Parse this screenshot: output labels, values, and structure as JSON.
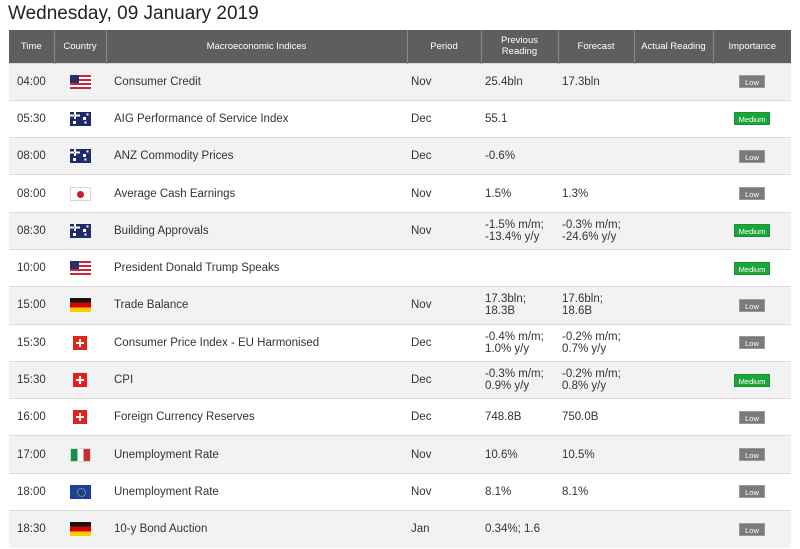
{
  "page": {
    "title": "Wednesday, 09 January 2019"
  },
  "columns": {
    "time": "Time",
    "country": "Country",
    "indicator": "Macroeconomic Indices",
    "period": "Period",
    "previous": "Previous Reading",
    "forecast": "Forecast",
    "actual": "Actual Reading",
    "importance": "Importance"
  },
  "rows": [
    {
      "time": "04:00",
      "flag": "us-flag-icon",
      "indicator": "Consumer Credit",
      "period": "Nov",
      "previous_1": "25.4bln",
      "previous_2": "",
      "forecast_1": "17.3bln",
      "forecast_2": "",
      "actual": "",
      "importance": "Low"
    },
    {
      "time": "05:30",
      "flag": "australia-flag-icon",
      "indicator": "AIG Performance of Service Index",
      "period": "Dec",
      "previous_1": "55.1",
      "previous_2": "",
      "forecast_1": "",
      "forecast_2": "",
      "actual": "",
      "importance": "Medium"
    },
    {
      "time": "08:00",
      "flag": "australia-flag-icon",
      "indicator": "ANZ Commodity Prices",
      "period": "Dec",
      "previous_1": "-0.6%",
      "previous_2": "",
      "forecast_1": "",
      "forecast_2": "",
      "actual": "",
      "importance": "Low"
    },
    {
      "time": "08:00",
      "flag": "japan-flag-icon",
      "indicator": "Average Cash Earnings",
      "period": "Nov",
      "previous_1": "1.5%",
      "previous_2": "",
      "forecast_1": "1.3%",
      "forecast_2": "",
      "actual": "",
      "importance": "Low"
    },
    {
      "time": "08:30",
      "flag": "australia-flag-icon",
      "indicator": "Building Approvals",
      "period": "Nov",
      "previous_1": "-1.5% m/m;",
      "previous_2": "-13.4% y/y",
      "forecast_1": "-0.3% m/m;",
      "forecast_2": "-24.6% y/y",
      "actual": "",
      "importance": "Medium"
    },
    {
      "time": "10:00",
      "flag": "us-flag-icon",
      "indicator": "President Donald Trump Speaks",
      "period": "",
      "previous_1": "",
      "previous_2": "",
      "forecast_1": "",
      "forecast_2": "",
      "actual": "",
      "importance": "Medium"
    },
    {
      "time": "15:00",
      "flag": "germany-flag-icon",
      "indicator": "Trade Balance",
      "period": "Nov",
      "previous_1": "17.3bln;",
      "previous_2": "18.3B",
      "forecast_1": "17.6bln;",
      "forecast_2": "18.6B",
      "actual": "",
      "importance": "Low"
    },
    {
      "time": "15:30",
      "flag": "switzerland-flag-icon",
      "indicator": "Consumer Price Index - EU Harmonised",
      "period": "Dec",
      "previous_1": "-0.4% m/m;",
      "previous_2": "1.0% y/y",
      "forecast_1": "-0.2% m/m;",
      "forecast_2": "0.7% y/y",
      "actual": "",
      "importance": "Low"
    },
    {
      "time": "15:30",
      "flag": "switzerland-flag-icon",
      "indicator": "CPI",
      "period": "Dec",
      "previous_1": "-0.3% m/m;",
      "previous_2": "0.9% y/y",
      "forecast_1": "-0.2% m/m;",
      "forecast_2": "0.8% y/y",
      "actual": "",
      "importance": "Medium"
    },
    {
      "time": "16:00",
      "flag": "switzerland-flag-icon",
      "indicator": "Foreign Currency Reserves",
      "period": "Dec",
      "previous_1": "748.8B",
      "previous_2": "",
      "forecast_1": "750.0B",
      "forecast_2": "",
      "actual": "",
      "importance": "Low"
    },
    {
      "time": "17:00",
      "flag": "italy-flag-icon",
      "indicator": "Unemployment Rate",
      "period": "Nov",
      "previous_1": "10.6%",
      "previous_2": "",
      "forecast_1": "10.5%",
      "forecast_2": "",
      "actual": "",
      "importance": "Low"
    },
    {
      "time": "18:00",
      "flag": "eu-flag-icon",
      "indicator": "Unemployment Rate",
      "period": "Nov",
      "previous_1": "8.1%",
      "previous_2": "",
      "forecast_1": "8.1%",
      "forecast_2": "",
      "actual": "",
      "importance": "Low"
    },
    {
      "time": "18:30",
      "flag": "germany-flag-icon",
      "indicator": "10-y Bond Auction",
      "period": "Jan",
      "previous_1": "0.34%; 1.6",
      "previous_2": "",
      "forecast_1": "",
      "forecast_2": "",
      "actual": "",
      "importance": "Low"
    }
  ],
  "colors": {
    "header_bg": "#5e5e5e",
    "row_alt_bg": "#f2f2f2",
    "badge_low": "#7b7b7b",
    "badge_medium": "#1ea53a"
  }
}
